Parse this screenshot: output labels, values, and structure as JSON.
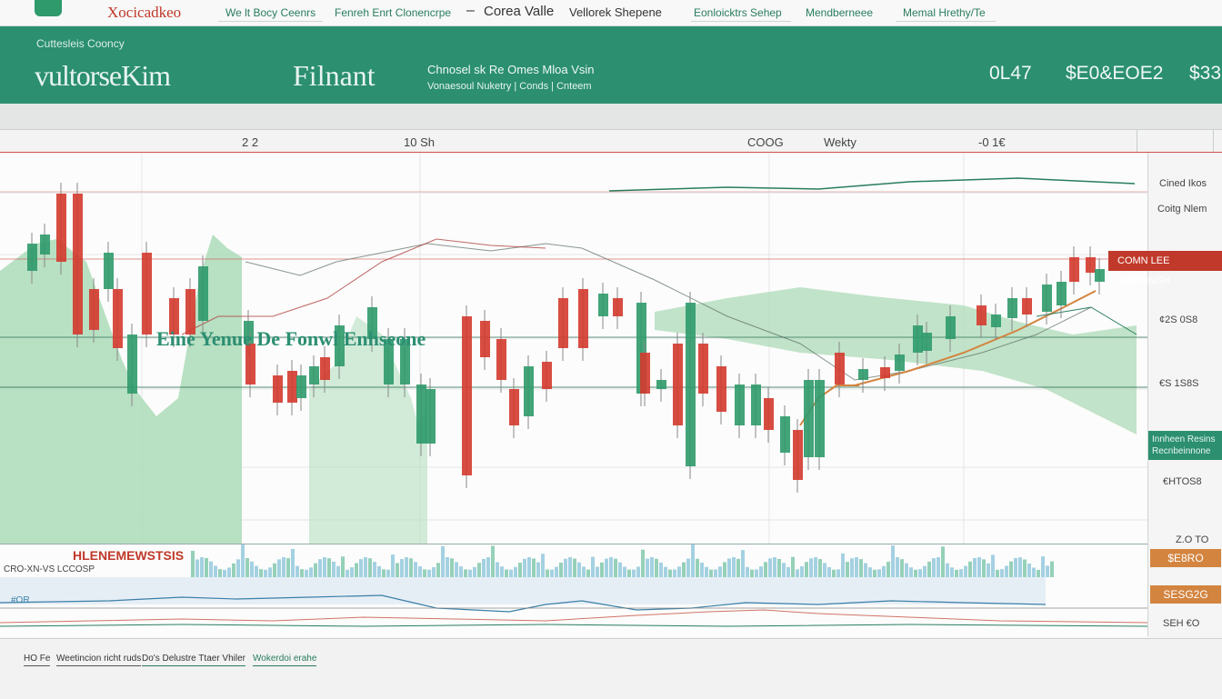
{
  "topnav": {
    "logo": "Xocicadkeo",
    "items": [
      "We lt Bocy Ceenrs",
      "Fenreh Enrt Clonencrpe",
      "Corea Valle",
      "Vellorek Shepene",
      "Eonloicktrs Sehep",
      "Mendberneee",
      "Memal Hrethy/Te"
    ]
  },
  "banner": {
    "subtitle": "Cuttesleis Cooncy",
    "brand": "vultorseKim",
    "brand2": "Filnant",
    "meta1": "Chnosel sk Re Omes Mloa Vsin",
    "meta2": "Vonaesoul Nuketry | Conds | Cnteem",
    "stat1": "0L47",
    "stat2": "$E0&EOE2",
    "stat3": "$33"
  },
  "axis": {
    "labels": [
      "2 2",
      "10 Sh",
      "COOG",
      "Wekty",
      "-0 1€"
    ]
  },
  "chart": {
    "title": "Eine Yenue De Fonwl Enhseone"
  },
  "right": {
    "label_top1": "Cined Ikos",
    "label_top2": "Coitg Nlem",
    "price_tag": "COMN LEE HWNNNSH",
    "level1": "¢2S 0S8",
    "level2": "€S 1S8S",
    "green_box": "Innheen Resins Recnbeinnone",
    "level3": "€HTOS8",
    "level4": "Z.O TO",
    "orange1": "$E8RO",
    "orange2": "SESG2G",
    "level5": "SEH €O"
  },
  "lower": {
    "volume_label": "HLENEMEWSTSIS",
    "volume_sub": "CRO-XN-VS LCCOSP",
    "indicator_label": "#OR"
  },
  "footer": {
    "tabs": [
      "HO Fe",
      "Weetincion richt ruds",
      "Do's Delustre Ttaer Vhiler",
      "Wokerdoi erahe"
    ]
  },
  "colors": {
    "brand_green": "#2b8f70",
    "candle_up": "#2f9a6c",
    "candle_down": "#d43a2e",
    "area_fill": "#a8d8b4",
    "tag_red": "#c0392b",
    "tag_orange": "#d3843f"
  }
}
